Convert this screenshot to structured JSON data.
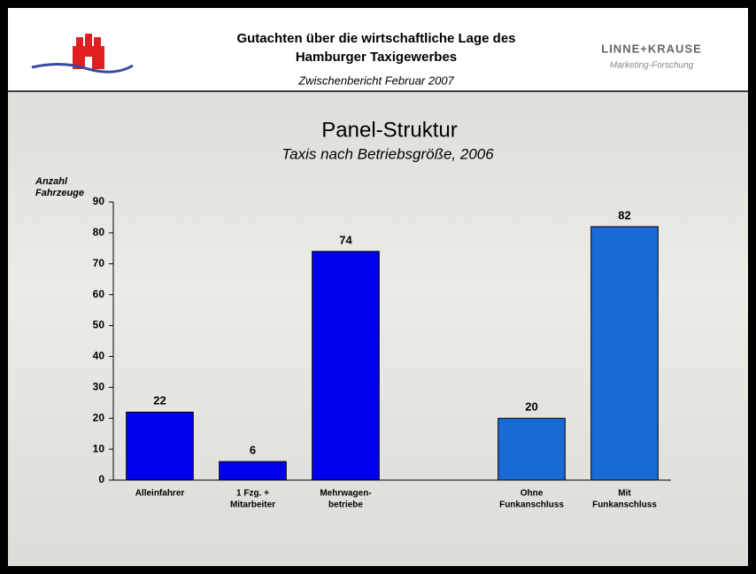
{
  "header": {
    "title_lines": [
      "Gutachten über die wirtschaftliche Lage des",
      "Hamburger Taxigewerbes"
    ],
    "subtitle": "Zwischenbericht Februar 2007",
    "logo_name": "LINNE+KRAUSE",
    "logo_tagline": "Marketing-Forschung"
  },
  "chart_data": {
    "type": "bar",
    "title": "Panel-Struktur",
    "subtitle": "Taxis nach Betriebsgröße, 2006",
    "y_label": [
      "Anzahl",
      "Fahrzeuge"
    ],
    "categories": [
      [
        "Alleinfahrer"
      ],
      [
        "1 Fzg. +",
        "Mitarbeiter"
      ],
      [
        "Mehrwagen-",
        "betriebe"
      ],
      null,
      [
        "Ohne",
        "Funkanschluss"
      ],
      [
        "Mit",
        "Funkanschluss"
      ]
    ],
    "values": [
      22,
      6,
      74,
      null,
      20,
      82
    ],
    "colors": [
      "#0000ee",
      "#0000ee",
      "#0000ee",
      null,
      "#1a6ad4",
      "#1a6ad4"
    ],
    "ylim": [
      0,
      90
    ],
    "yticks": [
      0,
      10,
      20,
      30,
      40,
      50,
      60,
      70,
      80,
      90
    ]
  }
}
